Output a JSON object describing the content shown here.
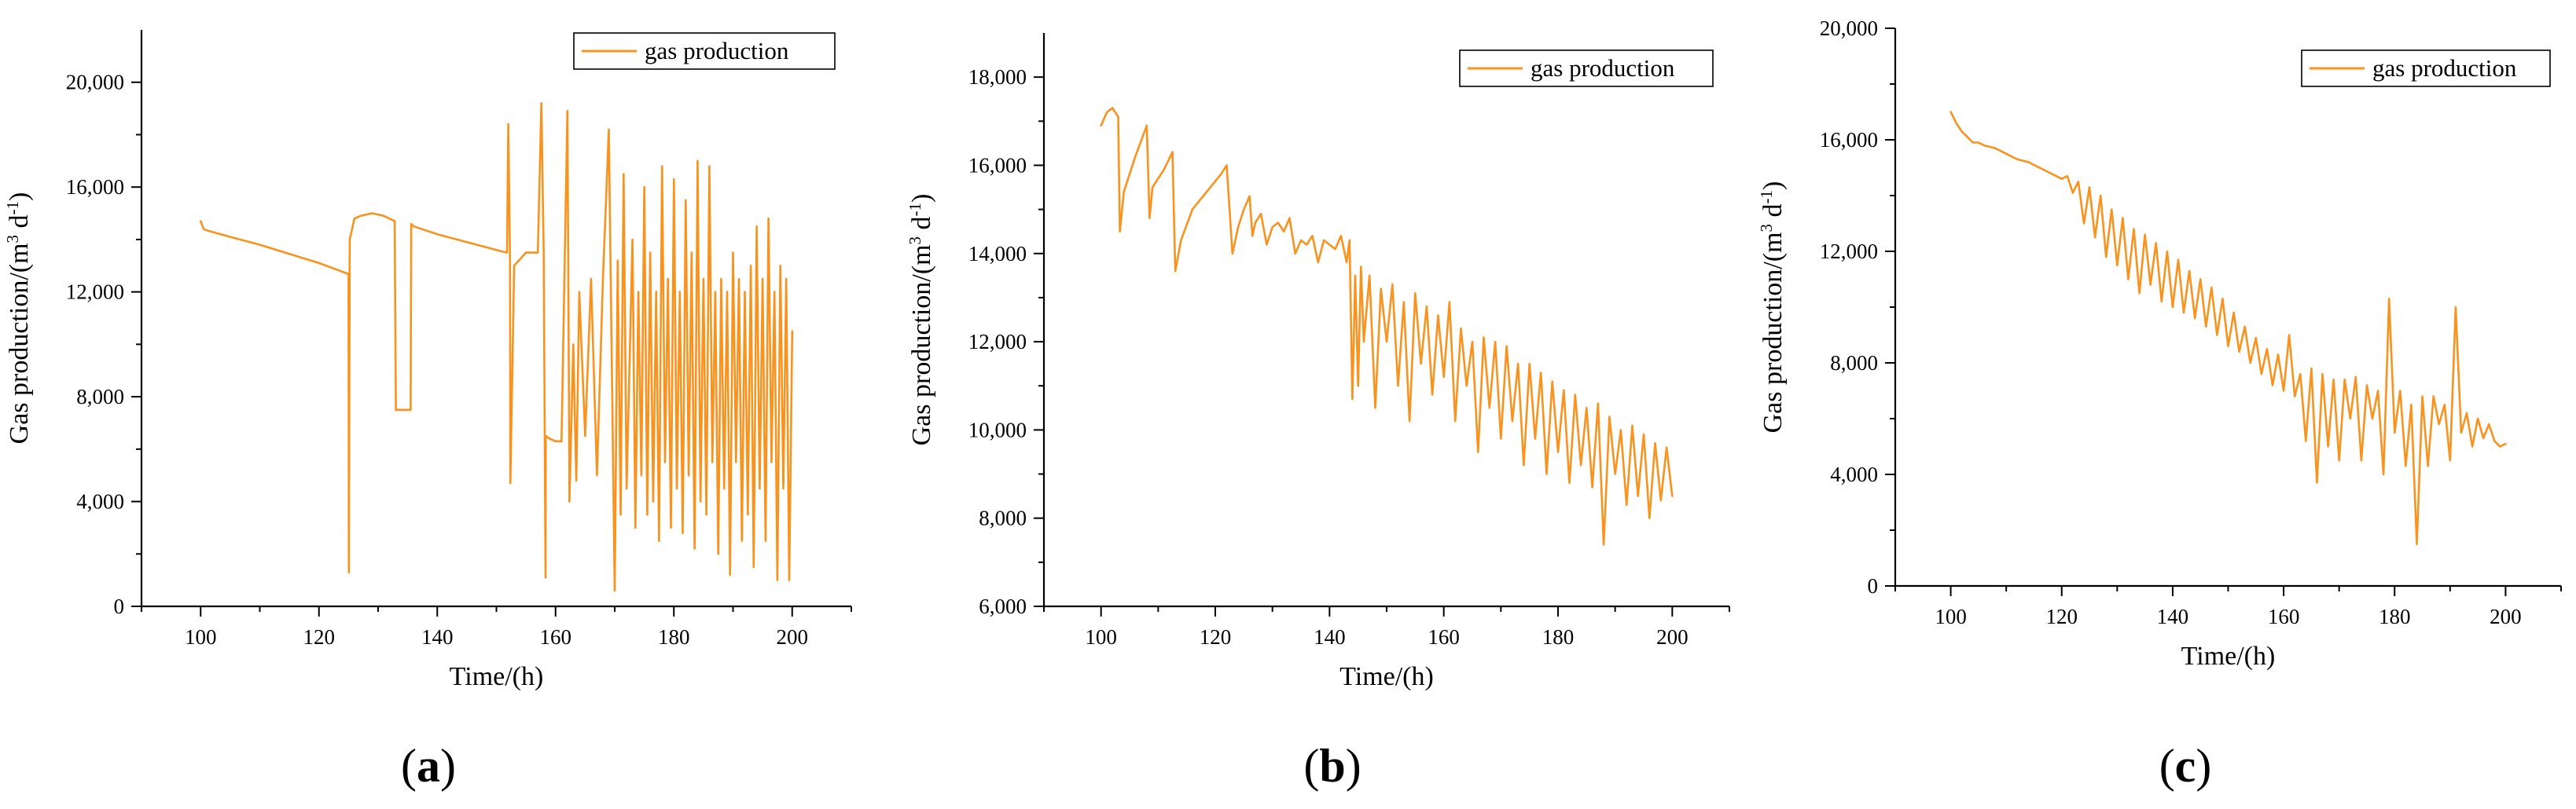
{
  "colors": {
    "series": "#F7931E",
    "axis": "#000000",
    "background": "#FFFFFF"
  },
  "chart_data": [
    {
      "type": "line",
      "panel_label": "a",
      "xlabel": "Time/(h)",
      "ylabel": "Gas production/(m³ d⁻¹)",
      "ylabel_parts": {
        "pre": "Gas production/(m",
        "sup1": "3",
        "mid": " d",
        "sup2": "-1",
        "post": ")"
      },
      "xlim": [
        90,
        210
      ],
      "ylim": [
        0,
        22000
      ],
      "x_ticks": [
        100,
        120,
        140,
        160,
        180,
        200
      ],
      "y_ticks": [
        0,
        4000,
        8000,
        12000,
        16000,
        20000
      ],
      "y_tick_labels": [
        "0",
        "4,000",
        "8,000",
        "12,000",
        "16,000",
        "20,000"
      ],
      "legend_position": "top-right",
      "series": [
        {
          "name": "gas production",
          "x": [
            100,
            100.5,
            101,
            105,
            110,
            115,
            120,
            124.8,
            125,
            125.05,
            125.2,
            126,
            127,
            129,
            131,
            132.8,
            133,
            134,
            135.5,
            135.6,
            136,
            140,
            145,
            150,
            151.8,
            152,
            152.3,
            152.35,
            153,
            155,
            157,
            157.6,
            158,
            158.3,
            158.35,
            159,
            160,
            161,
            162,
            162.3,
            162.35,
            163,
            163.5,
            164,
            165,
            166,
            167,
            168,
            169,
            170,
            170.5,
            171,
            171.5,
            172,
            173,
            173.5,
            174,
            174.5,
            175,
            175.5,
            176,
            176.5,
            177,
            177.5,
            178,
            178.5,
            179,
            179.5,
            180,
            180.5,
            181,
            181.5,
            182,
            182.5,
            183,
            183.5,
            184,
            184.5,
            185,
            185.5,
            186,
            186.5,
            187,
            187.5,
            188,
            188.5,
            189,
            189.5,
            190,
            190.5,
            191,
            191.5,
            192,
            192.5,
            193,
            193.5,
            194,
            194.5,
            195,
            195.5,
            196,
            196.5,
            197,
            197.5,
            198,
            198.5,
            199,
            199.5,
            200
          ],
          "y": [
            14700,
            14400,
            14350,
            14100,
            13800,
            13450,
            13100,
            12700,
            12700,
            1300,
            14000,
            14800,
            14900,
            15000,
            14900,
            14700,
            7500,
            7500,
            7500,
            14600,
            14500,
            14200,
            13900,
            13600,
            13500,
            18400,
            13200,
            4700,
            13000,
            13500,
            13500,
            19200,
            13400,
            1100,
            6500,
            6400,
            6300,
            6300,
            18900,
            6300,
            4000,
            10000,
            4800,
            12000,
            6500,
            12500,
            5000,
            12500,
            18200,
            600,
            13200,
            3500,
            16500,
            4500,
            14000,
            3000,
            12000,
            5000,
            16000,
            3500,
            13500,
            4000,
            12000,
            2500,
            16800,
            5500,
            12500,
            3000,
            16300,
            4500,
            12000,
            2800,
            15500,
            5000,
            13500,
            2200,
            17000,
            4000,
            12500,
            3500,
            16800,
            5500,
            12000,
            2000,
            12500,
            4500,
            12000,
            1200,
            13500,
            5500,
            12500,
            2500,
            12000,
            3500,
            13000,
            1500,
            14500,
            4500,
            12500,
            2500,
            14800,
            5500,
            12000,
            1000,
            13000,
            4500,
            12500,
            1000,
            10500
          ]
        }
      ]
    },
    {
      "type": "line",
      "panel_label": "b",
      "xlabel": "Time/(h)",
      "ylabel": "Gas production/(m³ d⁻¹)",
      "ylabel_parts": {
        "pre": "Gas production/(m",
        "sup1": "3",
        "mid": " d",
        "sup2": "-1",
        "post": ")"
      },
      "xlim": [
        90,
        210
      ],
      "ylim": [
        6000,
        19000
      ],
      "x_ticks": [
        100,
        120,
        140,
        160,
        180,
        200
      ],
      "y_ticks": [
        6000,
        8000,
        10000,
        12000,
        14000,
        16000,
        18000
      ],
      "y_tick_labels": [
        "6,000",
        "8,000",
        "10,000",
        "12,000",
        "14,000",
        "16,000",
        "18,000"
      ],
      "legend_position": "top-right",
      "series": [
        {
          "name": "gas production",
          "x": [
            100,
            101,
            102,
            103,
            103.3,
            104,
            106,
            108,
            108.5,
            109,
            111,
            112.5,
            113,
            114,
            116,
            121,
            122,
            123,
            124,
            125,
            126,
            126.5,
            127,
            128,
            129,
            130,
            131,
            132,
            133,
            134,
            135,
            136,
            137,
            138,
            139,
            140,
            141,
            142,
            143,
            143.5,
            144,
            144.5,
            145,
            145.5,
            146,
            147,
            148,
            149,
            150,
            151,
            152,
            153,
            154,
            155,
            156,
            157,
            158,
            159,
            160,
            161,
            162,
            163,
            164,
            165,
            166,
            167,
            168,
            169,
            170,
            171,
            172,
            173,
            174,
            175,
            176,
            177,
            178,
            179,
            180,
            181,
            182,
            183,
            184,
            185,
            186,
            187,
            188,
            189,
            190,
            191,
            192,
            193,
            194,
            195,
            196,
            197,
            198,
            199,
            200
          ],
          "y": [
            16900,
            17200,
            17300,
            17100,
            14500,
            15400,
            16200,
            16900,
            14800,
            15500,
            15900,
            16300,
            13600,
            14300,
            15000,
            15800,
            16000,
            14000,
            14600,
            15000,
            15300,
            14400,
            14700,
            14900,
            14200,
            14600,
            14700,
            14500,
            14800,
            14000,
            14300,
            14200,
            14400,
            13800,
            14300,
            14200,
            14100,
            14400,
            13800,
            14300,
            10700,
            13500,
            11000,
            13700,
            12000,
            13500,
            10500,
            13200,
            12000,
            13300,
            11000,
            12900,
            10200,
            13100,
            11500,
            12800,
            10800,
            12600,
            11200,
            12900,
            10200,
            12300,
            11000,
            12000,
            9500,
            12100,
            10500,
            12000,
            9800,
            11900,
            10200,
            11500,
            9200,
            11500,
            9800,
            11300,
            9000,
            11100,
            9500,
            10900,
            8800,
            10800,
            9200,
            10500,
            8700,
            10600,
            7400,
            10300,
            9000,
            10000,
            8300,
            10100,
            8500,
            9900,
            8000,
            9700,
            8400,
            9600,
            8500
          ]
        }
      ]
    },
    {
      "type": "line",
      "panel_label": "c",
      "xlabel": "Time/(h)",
      "ylabel": "Gas production/(m³ d⁻¹)",
      "ylabel_parts": {
        "pre": "Gas production/(m",
        "sup1": "3",
        "mid": " d",
        "sup2": "-1",
        "post": ")"
      },
      "xlim": [
        90,
        210
      ],
      "ylim": [
        0,
        20000
      ],
      "x_ticks": [
        100,
        120,
        140,
        160,
        180,
        200
      ],
      "y_ticks": [
        0,
        4000,
        8000,
        12000,
        16000,
        20000
      ],
      "y_tick_labels": [
        "0",
        "4,000",
        "8,000",
        "12,000",
        "16,000",
        "20,000"
      ],
      "legend_position": "top-right",
      "series": [
        {
          "name": "gas production",
          "x": [
            100,
            101,
            102,
            103,
            104,
            105,
            106,
            108,
            110,
            112,
            114,
            116,
            118,
            120,
            121,
            122,
            123,
            124,
            125,
            126,
            127,
            128,
            129,
            130,
            131,
            132,
            133,
            134,
            135,
            136,
            137,
            138,
            139,
            140,
            141,
            142,
            143,
            144,
            145,
            146,
            147,
            148,
            149,
            150,
            151,
            152,
            153,
            154,
            155,
            156,
            157,
            158,
            159,
            160,
            161,
            162,
            163,
            164,
            165,
            166,
            167,
            168,
            169,
            170,
            171,
            172,
            173,
            174,
            175,
            176,
            177,
            178,
            179,
            180,
            181,
            182,
            183,
            184,
            185,
            186,
            187,
            188,
            189,
            190,
            191,
            192,
            193,
            194,
            195,
            196,
            197,
            198,
            199,
            200
          ],
          "y": [
            17000,
            16600,
            16300,
            16100,
            15900,
            15900,
            15800,
            15700,
            15500,
            15300,
            15200,
            15000,
            14800,
            14600,
            14700,
            14100,
            14500,
            13000,
            14300,
            12500,
            14000,
            11800,
            13500,
            11500,
            13200,
            11000,
            12800,
            10500,
            12600,
            10800,
            12300,
            10200,
            12000,
            10000,
            11700,
            9800,
            11300,
            9600,
            11000,
            9300,
            10700,
            9000,
            10300,
            8600,
            9800,
            8400,
            9300,
            8000,
            8900,
            7600,
            8500,
            7200,
            8300,
            7000,
            9000,
            6800,
            7600,
            5200,
            7800,
            3700,
            7600,
            5000,
            7400,
            4500,
            7400,
            6000,
            7500,
            4500,
            7200,
            6000,
            7000,
            4000,
            10300,
            5500,
            7000,
            4300,
            6500,
            1500,
            6800,
            4300,
            6800,
            5800,
            6500,
            4500,
            10000,
            5500,
            6200,
            5000,
            6000,
            5300,
            5800,
            5200,
            5000,
            5100
          ]
        }
      ]
    }
  ]
}
